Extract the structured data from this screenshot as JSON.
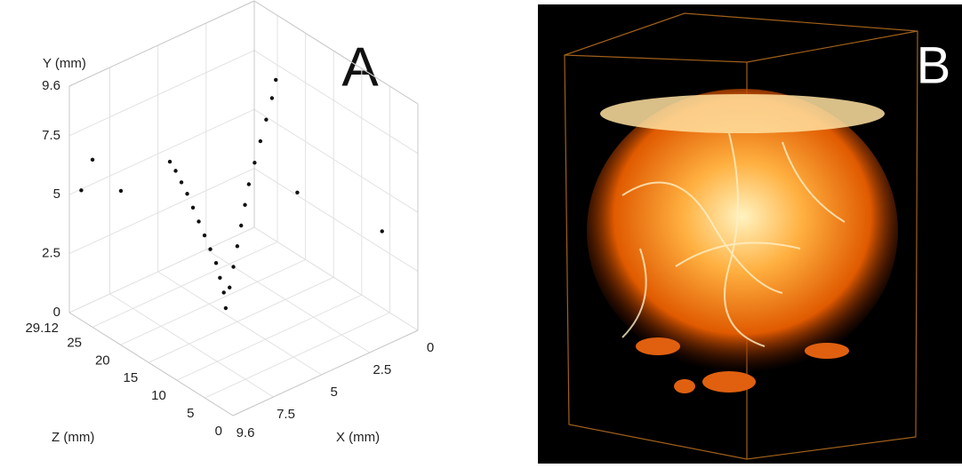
{
  "panel_a": {
    "label": "A",
    "chart_data": {
      "type": "scatter3d",
      "xlabel": "X (mm)",
      "ylabel": "Y (mm)",
      "zlabel": "Z (mm)",
      "xlim": [
        0,
        9.6
      ],
      "ylim": [
        0,
        9.6
      ],
      "zlim": [
        0,
        29.12
      ],
      "xticks": [
        0,
        2.5,
        5,
        7.5,
        9.6
      ],
      "yticks": [
        0,
        2.5,
        5,
        7.5,
        9.6
      ],
      "zticks": [
        0,
        5,
        10,
        15,
        20,
        25,
        29.12
      ],
      "grid": true,
      "color": "#111111",
      "x": [
        5.6,
        5.7,
        5.9,
        6.1,
        6.4,
        6.7,
        7.0,
        7.3,
        7.6,
        7.9,
        8.2,
        8.5,
        5.4,
        5.2,
        5.0,
        4.8,
        4.6,
        4.4,
        4.1,
        3.8,
        3.5,
        3.2,
        3.0,
        9.6,
        9.6,
        9.0,
        4.8,
        0.4
      ],
      "y": [
        0.8,
        1.5,
        2.2,
        2.9,
        3.6,
        4.3,
        5.0,
        5.7,
        6.4,
        7.0,
        7.6,
        8.1,
        1.6,
        2.4,
        3.2,
        4.0,
        4.8,
        5.6,
        6.4,
        7.2,
        8.0,
        8.8,
        9.5,
        7.1,
        5.5,
        6.0,
        6.9,
        3.6
      ],
      "z": [
        15,
        15,
        15,
        15,
        15,
        15,
        15,
        15,
        15,
        15,
        15,
        15,
        15,
        15,
        15,
        15,
        15,
        15,
        15,
        15,
        15,
        15,
        15,
        25,
        27,
        22,
        5,
        5
      ]
    }
  },
  "panel_b": {
    "label": "B"
  }
}
